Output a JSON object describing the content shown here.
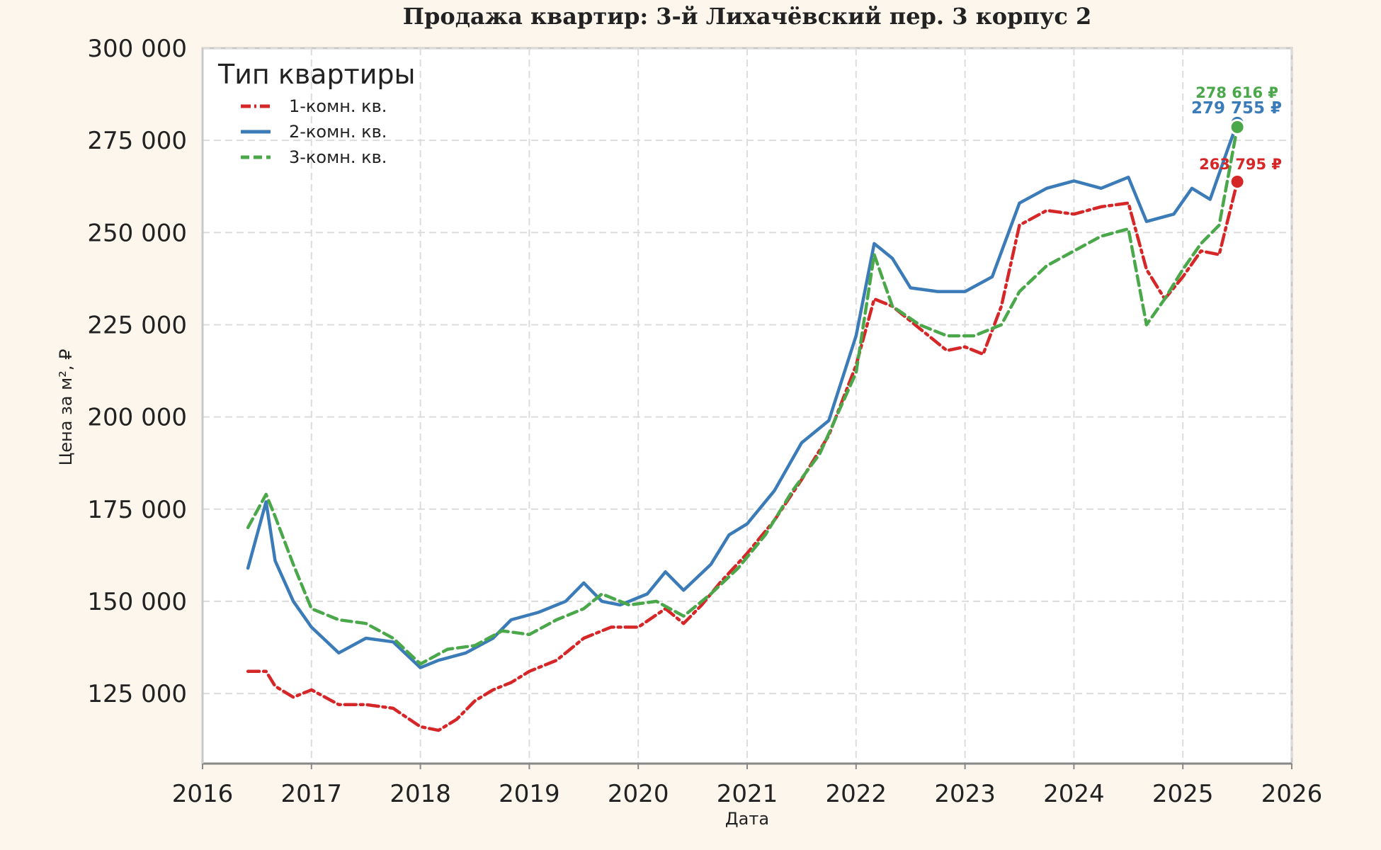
{
  "chart_data": {
    "type": "line",
    "title": "Продажа квартир: 3-й Лихачёвский пер. 3 корпус 2",
    "xlabel": "Дата",
    "ylabel": "Цена за м², ₽",
    "xlim": [
      2016,
      2026
    ],
    "ylim": [
      106000,
      300000
    ],
    "x_ticks": [
      "2016",
      "2017",
      "2018",
      "2019",
      "2020",
      "2021",
      "2022",
      "2023",
      "2024",
      "2025",
      "2026"
    ],
    "y_ticks": [
      125000,
      150000,
      175000,
      200000,
      225000,
      250000,
      275000,
      300000
    ],
    "y_tick_labels": [
      "125 000",
      "150 000",
      "175 000",
      "200 000",
      "225 000",
      "250 000",
      "275 000",
      "300 000"
    ],
    "grid": true,
    "legend": {
      "title": "Тип квартиры",
      "position": "top-left"
    },
    "series": [
      {
        "name": "1-комн. кв.",
        "color": "#d62728",
        "dash": "dashdot",
        "end_label": "263 795 ₽",
        "end_value": 263795,
        "points": [
          [
            "2016-06",
            131000
          ],
          [
            "2016-08",
            131000
          ],
          [
            "2016-09",
            127000
          ],
          [
            "2016-11",
            124000
          ],
          [
            "2017-01",
            126000
          ],
          [
            "2017-04",
            122000
          ],
          [
            "2017-07",
            122000
          ],
          [
            "2017-10",
            121000
          ],
          [
            "2018-01",
            116000
          ],
          [
            "2018-03",
            115000
          ],
          [
            "2018-05",
            118000
          ],
          [
            "2018-07",
            123000
          ],
          [
            "2018-09",
            126000
          ],
          [
            "2018-11",
            128000
          ],
          [
            "2019-01",
            131000
          ],
          [
            "2019-04",
            134000
          ],
          [
            "2019-07",
            140000
          ],
          [
            "2019-10",
            143000
          ],
          [
            "2020-01",
            143000
          ],
          [
            "2020-04",
            148000
          ],
          [
            "2020-06",
            144000
          ],
          [
            "2020-08",
            149000
          ],
          [
            "2020-10",
            155000
          ],
          [
            "2021-01",
            163000
          ],
          [
            "2021-04",
            172000
          ],
          [
            "2021-07",
            183000
          ],
          [
            "2021-10",
            195000
          ],
          [
            "2022-01",
            214000
          ],
          [
            "2022-03",
            232000
          ],
          [
            "2022-05",
            230000
          ],
          [
            "2022-08",
            224000
          ],
          [
            "2022-11",
            218000
          ],
          [
            "2023-01",
            219000
          ],
          [
            "2023-03",
            217000
          ],
          [
            "2023-05",
            230000
          ],
          [
            "2023-07",
            252000
          ],
          [
            "2023-10",
            256000
          ],
          [
            "2024-01",
            255000
          ],
          [
            "2024-04",
            257000
          ],
          [
            "2024-07",
            258000
          ],
          [
            "2024-09",
            240000
          ],
          [
            "2024-11",
            232000
          ],
          [
            "2025-01",
            238000
          ],
          [
            "2025-03",
            245000
          ],
          [
            "2025-05",
            244000
          ],
          [
            "2025-07",
            263795
          ]
        ]
      },
      {
        "name": "2-комн. кв.",
        "color": "#3a7bb8",
        "dash": "solid",
        "end_label": "279 755 ₽",
        "end_value": 279755,
        "points": [
          [
            "2016-06",
            159000
          ],
          [
            "2016-07",
            168000
          ],
          [
            "2016-08",
            177000
          ],
          [
            "2016-09",
            161000
          ],
          [
            "2016-11",
            150000
          ],
          [
            "2017-01",
            143000
          ],
          [
            "2017-04",
            136000
          ],
          [
            "2017-07",
            140000
          ],
          [
            "2017-10",
            139000
          ],
          [
            "2018-01",
            132000
          ],
          [
            "2018-03",
            134000
          ],
          [
            "2018-06",
            136000
          ],
          [
            "2018-09",
            140000
          ],
          [
            "2018-11",
            145000
          ],
          [
            "2019-02",
            147000
          ],
          [
            "2019-05",
            150000
          ],
          [
            "2019-07",
            155000
          ],
          [
            "2019-09",
            150000
          ],
          [
            "2019-11",
            149000
          ],
          [
            "2020-02",
            152000
          ],
          [
            "2020-04",
            158000
          ],
          [
            "2020-06",
            153000
          ],
          [
            "2020-09",
            160000
          ],
          [
            "2020-11",
            168000
          ],
          [
            "2021-01",
            171000
          ],
          [
            "2021-04",
            180000
          ],
          [
            "2021-07",
            193000
          ],
          [
            "2021-10",
            199000
          ],
          [
            "2022-01",
            222000
          ],
          [
            "2022-03",
            247000
          ],
          [
            "2022-05",
            243000
          ],
          [
            "2022-07",
            235000
          ],
          [
            "2022-10",
            234000
          ],
          [
            "2023-01",
            234000
          ],
          [
            "2023-04",
            238000
          ],
          [
            "2023-07",
            258000
          ],
          [
            "2023-10",
            262000
          ],
          [
            "2024-01",
            264000
          ],
          [
            "2024-04",
            262000
          ],
          [
            "2024-07",
            265000
          ],
          [
            "2024-09",
            253000
          ],
          [
            "2024-12",
            255000
          ],
          [
            "2025-02",
            262000
          ],
          [
            "2025-04",
            259000
          ],
          [
            "2025-06",
            273000
          ],
          [
            "2025-07",
            279755
          ]
        ]
      },
      {
        "name": "3-комн. кв.",
        "color": "#4aa84a",
        "dash": "dashed",
        "end_label": "278 616 ₽",
        "end_value": 278616,
        "points": [
          [
            "2016-06",
            170000
          ],
          [
            "2016-08",
            179000
          ],
          [
            "2016-09",
            173000
          ],
          [
            "2016-11",
            160000
          ],
          [
            "2017-01",
            148000
          ],
          [
            "2017-04",
            145000
          ],
          [
            "2017-07",
            144000
          ],
          [
            "2017-10",
            140000
          ],
          [
            "2018-01",
            133000
          ],
          [
            "2018-04",
            137000
          ],
          [
            "2018-07",
            138000
          ],
          [
            "2018-10",
            142000
          ],
          [
            "2019-01",
            141000
          ],
          [
            "2019-04",
            145000
          ],
          [
            "2019-07",
            148000
          ],
          [
            "2019-09",
            152000
          ],
          [
            "2019-12",
            149000
          ],
          [
            "2020-03",
            150000
          ],
          [
            "2020-06",
            146000
          ],
          [
            "2020-09",
            152000
          ],
          [
            "2020-12",
            159000
          ],
          [
            "2021-03",
            168000
          ],
          [
            "2021-06",
            180000
          ],
          [
            "2021-09",
            190000
          ],
          [
            "2022-01",
            212000
          ],
          [
            "2022-03",
            244000
          ],
          [
            "2022-05",
            230000
          ],
          [
            "2022-08",
            225000
          ],
          [
            "2022-11",
            222000
          ],
          [
            "2023-02",
            222000
          ],
          [
            "2023-05",
            225000
          ],
          [
            "2023-07",
            234000
          ],
          [
            "2023-10",
            241000
          ],
          [
            "2024-01",
            245000
          ],
          [
            "2024-04",
            249000
          ],
          [
            "2024-07",
            251000
          ],
          [
            "2024-09",
            225000
          ],
          [
            "2024-11",
            232000
          ],
          [
            "2025-01",
            240000
          ],
          [
            "2025-03",
            247000
          ],
          [
            "2025-05",
            252000
          ],
          [
            "2025-07",
            278616
          ]
        ]
      }
    ]
  }
}
